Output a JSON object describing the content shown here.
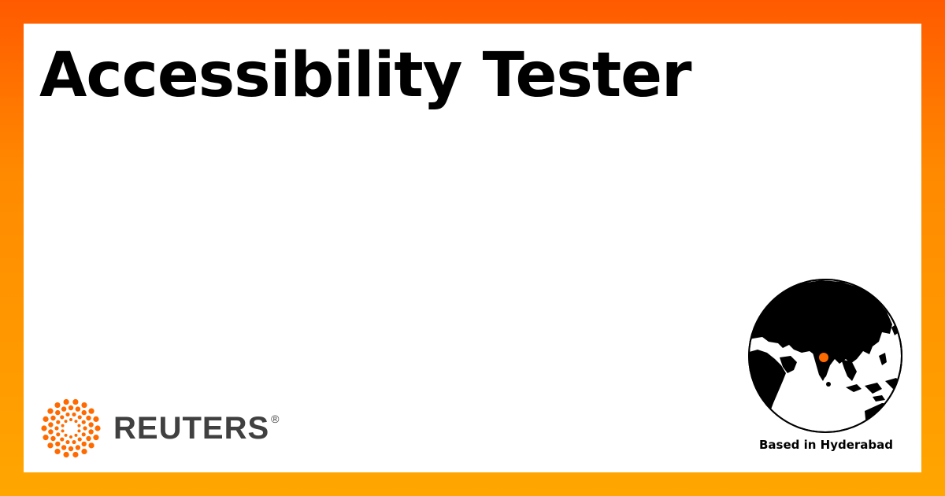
{
  "card": {
    "title": "Accessibility Tester"
  },
  "brand": {
    "name": "REUTERS",
    "registered_mark": "®",
    "logo_color": "#ff6a00",
    "text_color": "#404040"
  },
  "location": {
    "label": "Based in Hyderabad",
    "pin_color": "#ff6a00"
  },
  "colors": {
    "frame_top": "#ff5a00",
    "frame_bottom": "#ffa600",
    "card_background": "#ffffff"
  }
}
